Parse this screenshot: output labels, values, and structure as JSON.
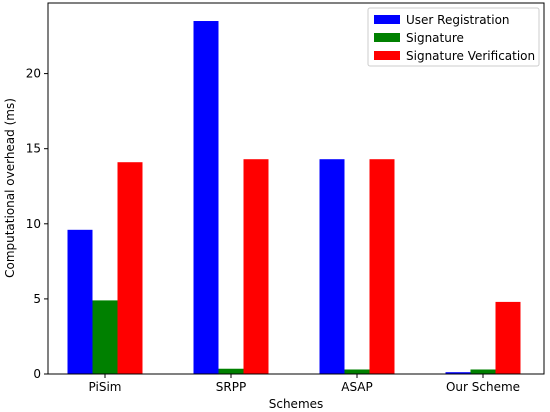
{
  "chart_data": {
    "type": "bar",
    "title": "",
    "xlabel": "Schemes",
    "ylabel": "Computational overhead (ms)",
    "categories": [
      "PiSim",
      "SRPP",
      "ASAP",
      "Our Scheme"
    ],
    "series": [
      {
        "name": "User Registration",
        "color": "#0000ff",
        "values": [
          9.6,
          23.5,
          14.3,
          0.12
        ]
      },
      {
        "name": "Signature",
        "color": "#008000",
        "values": [
          4.9,
          0.35,
          0.3,
          0.3
        ]
      },
      {
        "name": "Signature Verification",
        "color": "#ff0000",
        "values": [
          14.1,
          14.3,
          14.3,
          4.8
        ]
      }
    ],
    "ylim": [
      0,
      24.7
    ],
    "yticks": [
      0,
      5,
      10,
      15,
      20
    ],
    "legend": "top-right",
    "grid": false
  }
}
